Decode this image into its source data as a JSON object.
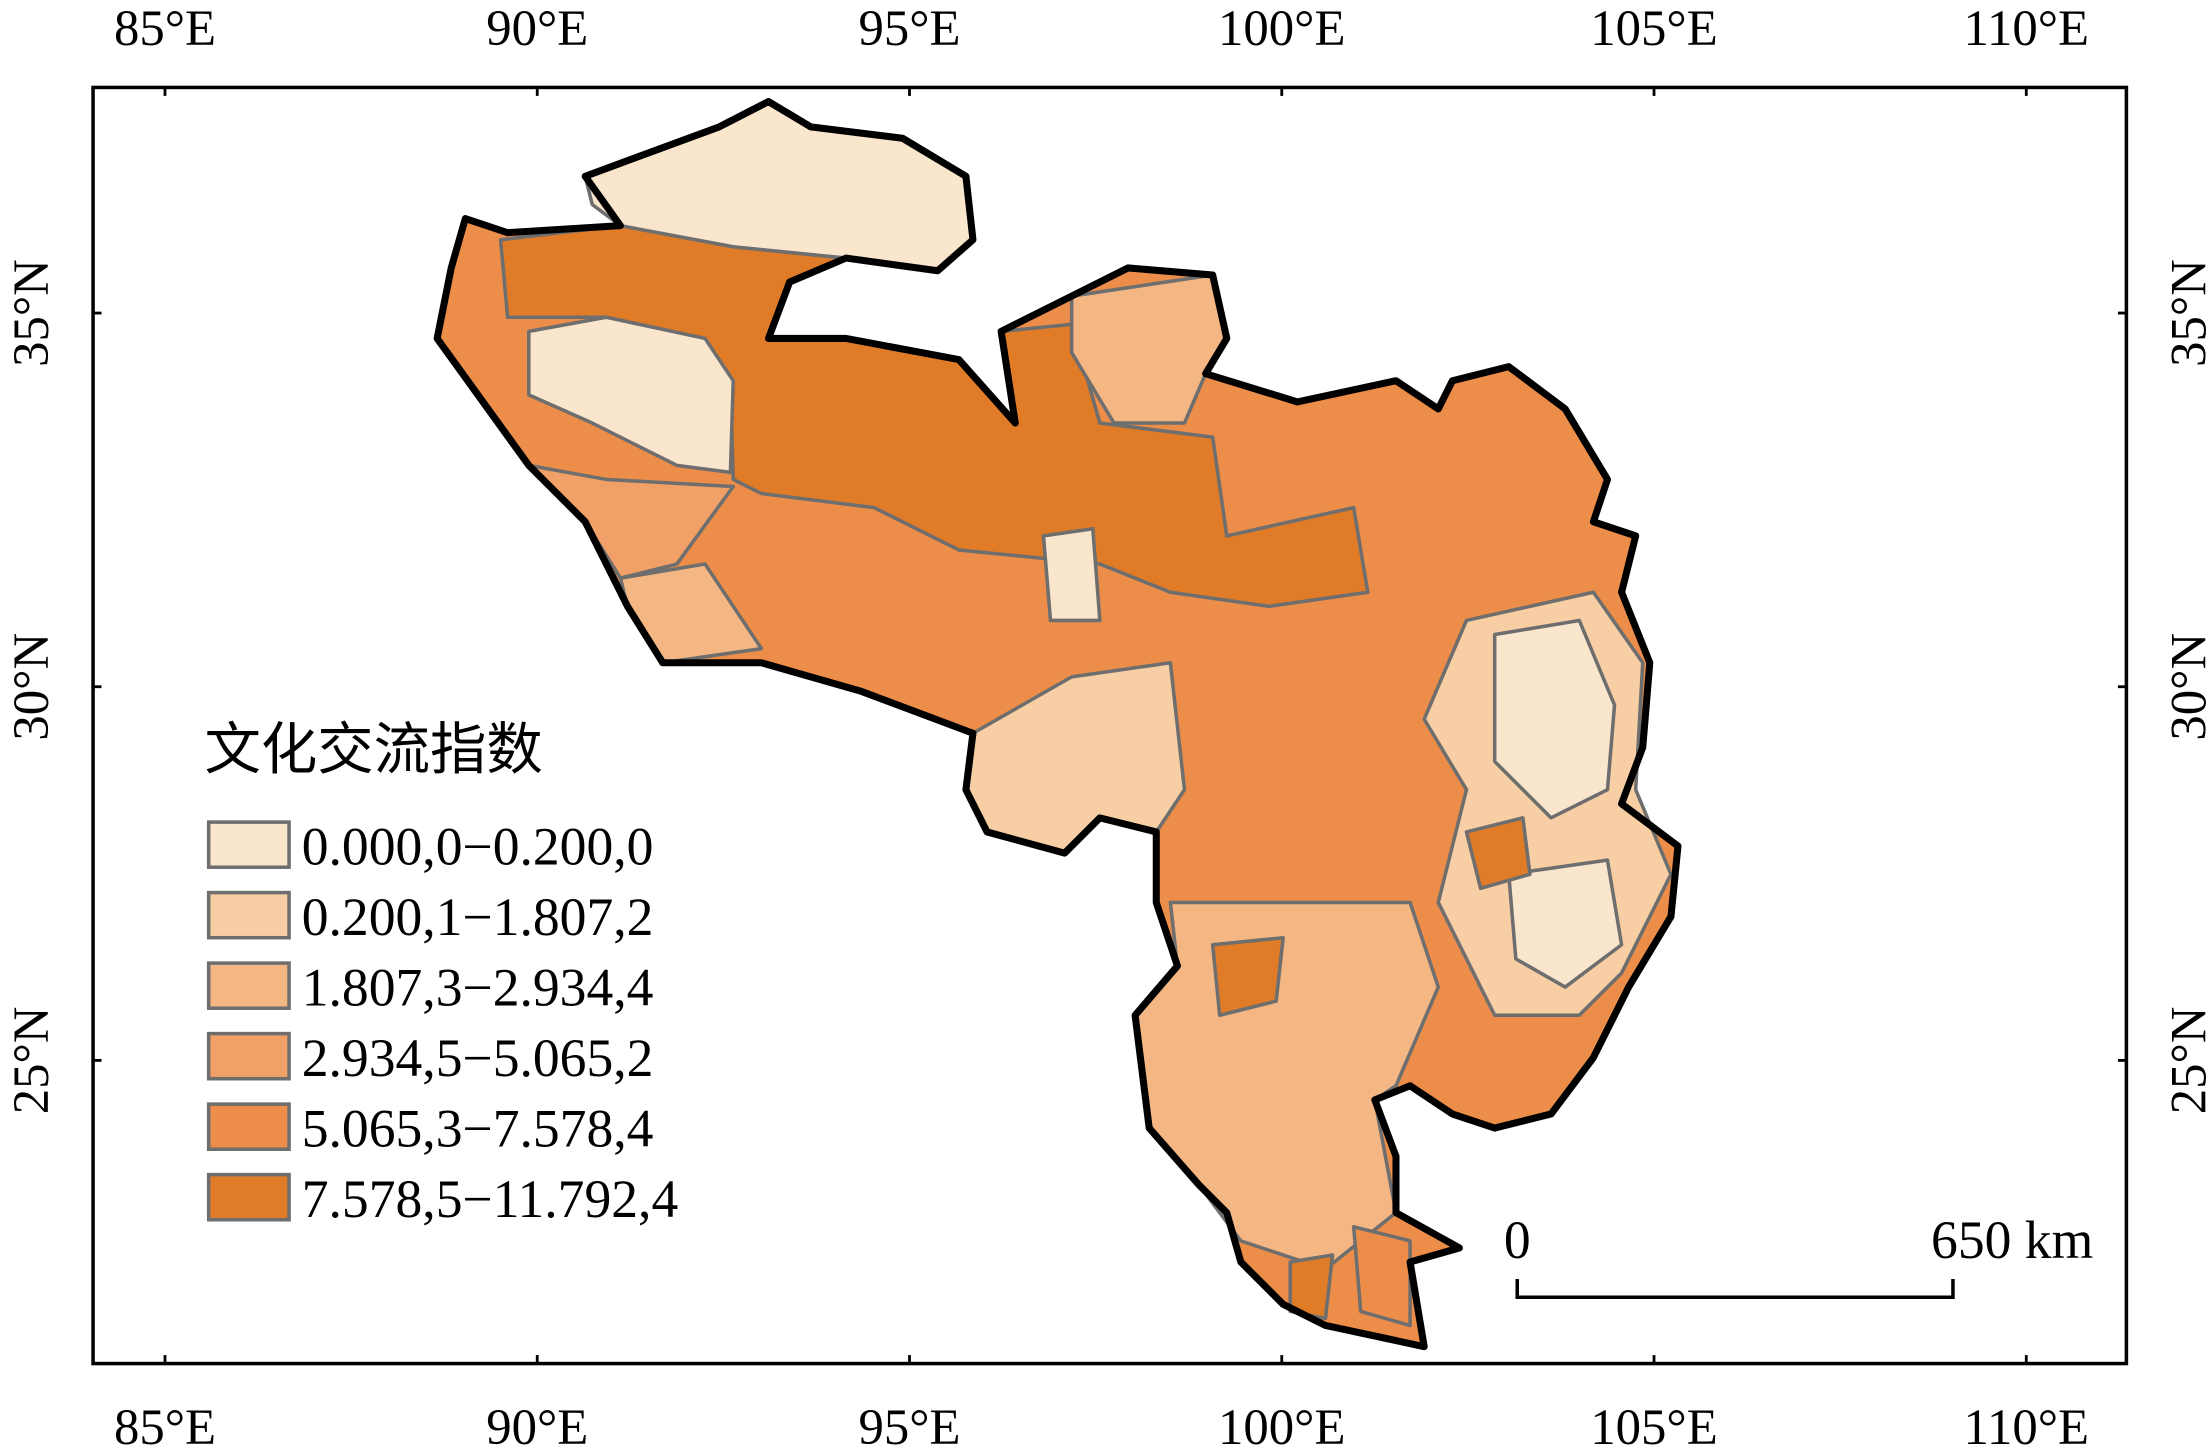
{
  "map": {
    "lon_ticks": [
      "85°E",
      "90°E",
      "95°E",
      "100°E",
      "105°E",
      "110°E"
    ],
    "lat_ticks": [
      "35°N",
      "30°N",
      "25°N"
    ],
    "legend": {
      "title": "文化交流指数",
      "classes": [
        {
          "label": "0.000,0−0.200,0",
          "color": "#fae6cc"
        },
        {
          "label": "0.200,1−1.807,2",
          "color": "#f8cfa5"
        },
        {
          "label": "1.807,3−2.934,4",
          "color": "#f4b784"
        },
        {
          "label": "2.934,5−5.065,2",
          "color": "#f1a067"
        },
        {
          "label": "5.065,3−7.578,4",
          "color": "#ec8e4a"
        },
        {
          "label": "7.578,5−11.792,4",
          "color": "#e07c28"
        }
      ]
    },
    "scale_bar": {
      "start": "0",
      "end": "650 km"
    }
  }
}
